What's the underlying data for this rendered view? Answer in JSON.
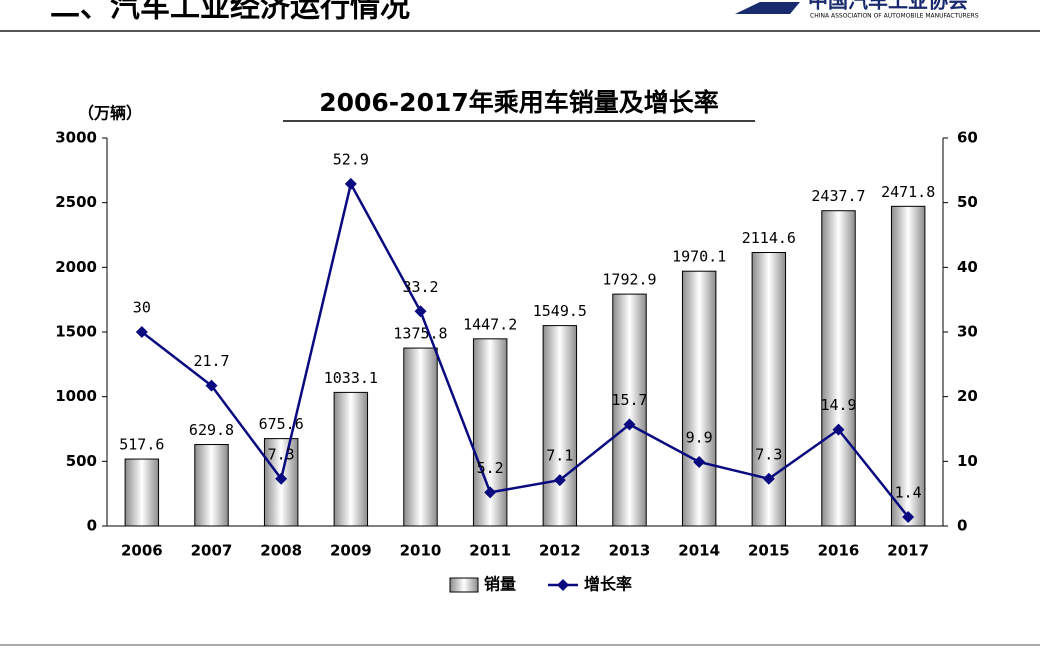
{
  "header": {
    "title": "二、汽车工业经济运行情况",
    "logo": "中国汽车工业协会",
    "logo_sub": "CHINA ASSOCIATION OF AUTOMOBILE MANUFACTURERS"
  },
  "chart_data": {
    "type": "bar",
    "title": "2006-2017年乘用车销量及增长率",
    "ylabel": "（万辆）",
    "categories": [
      "2006",
      "2007",
      "2008",
      "2009",
      "2010",
      "2011",
      "2012",
      "2013",
      "2014",
      "2015",
      "2016",
      "2017"
    ],
    "series": [
      {
        "name": "销量",
        "type": "bar",
        "color": "#8c8c8c",
        "values": [
          517.6,
          629.8,
          675.6,
          1033.1,
          1375.8,
          1447.2,
          1549.5,
          1792.9,
          1970.1,
          2114.6,
          2437.7,
          2471.8
        ]
      },
      {
        "name": "增长率",
        "type": "line",
        "axis": "y2",
        "color": "#0a0a80",
        "values": [
          30,
          21.7,
          7.3,
          52.9,
          33.2,
          5.2,
          7.1,
          15.7,
          9.9,
          7.3,
          14.9,
          1.4
        ]
      }
    ],
    "ylim": [
      0,
      3000
    ],
    "yticks": [
      0,
      500,
      1000,
      1500,
      2000,
      2500,
      3000
    ],
    "y2lim": [
      0,
      60
    ],
    "y2ticks": [
      0,
      10,
      20,
      30,
      40,
      50,
      60
    ],
    "legend": "bottom"
  }
}
